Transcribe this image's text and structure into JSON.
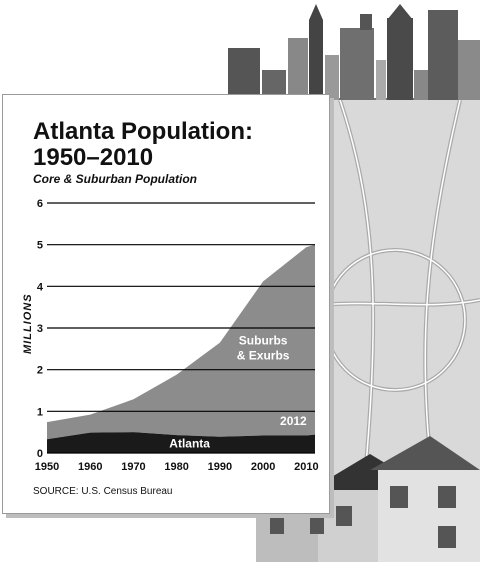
{
  "header": {
    "title_line1": "Atlanta Population:",
    "title_line2": "1950–2010",
    "subtitle": "Core & Suburban Population"
  },
  "source": "SOURCE: U.S. Census Bureau",
  "chart_data": {
    "type": "area",
    "title": "Atlanta Population: 1950–2010",
    "subtitle": "Core & Suburban Population",
    "ylabel": "MILLIONS",
    "xlabel": "",
    "x": [
      1950,
      1960,
      1970,
      1980,
      1990,
      2000,
      2010,
      2012
    ],
    "xticks": [
      1950,
      1960,
      1970,
      1980,
      1990,
      2000,
      2010
    ],
    "yticks": [
      0,
      1,
      2,
      3,
      4,
      5,
      6
    ],
    "xlim": [
      1950,
      2012
    ],
    "ylim": [
      0,
      6
    ],
    "grid": true,
    "series": [
      {
        "name": "Atlanta",
        "values": [
          0.33,
          0.49,
          0.5,
          0.43,
          0.39,
          0.42,
          0.42,
          0.44
        ],
        "color": "#1a1a1a"
      },
      {
        "name": "Suburbs & Exurbs",
        "values": [
          0.41,
          0.43,
          0.79,
          1.45,
          2.26,
          3.7,
          4.52,
          4.56
        ],
        "color": "#8c8c8c"
      }
    ],
    "annotations": [
      {
        "text": "Suburbs",
        "x": 2000,
        "y": 2.6
      },
      {
        "text": "& Exurbs",
        "x": 2000,
        "y": 2.25
      },
      {
        "text": "2012",
        "x": 2007,
        "y": 0.67
      }
    ]
  }
}
